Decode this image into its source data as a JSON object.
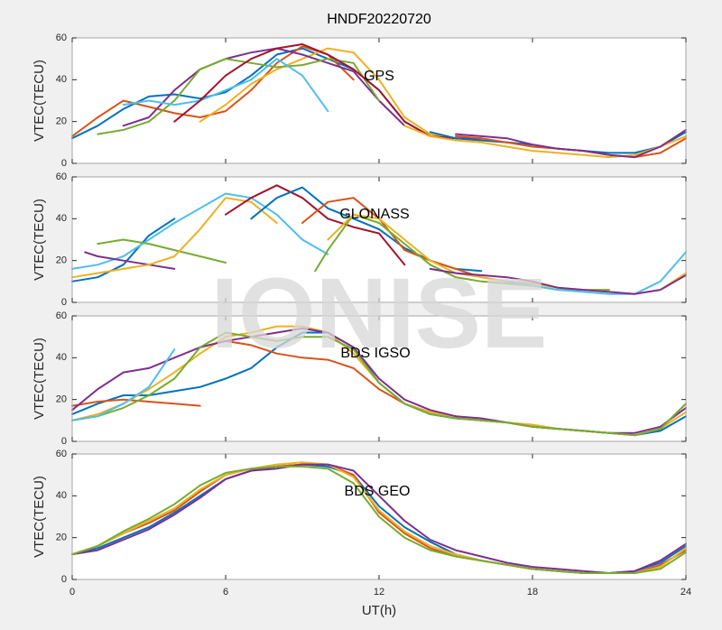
{
  "chart_data": [
    {
      "type": "line",
      "title": "HNDF20220720",
      "annotation": "GPS",
      "ylabel": "VTEC(TECU)",
      "xlim": [
        0,
        24
      ],
      "xticks": [
        0,
        6,
        12,
        18,
        24
      ],
      "ylim": [
        0,
        60
      ],
      "yticks": [
        0,
        20,
        40,
        60
      ],
      "series": [
        {
          "color": "#0072BD",
          "x": [
            0,
            1,
            2,
            3,
            4,
            5,
            6,
            7,
            8,
            9,
            10,
            11,
            12,
            13,
            14
          ],
          "values": [
            12,
            18,
            26,
            32,
            33,
            31,
            34,
            42,
            52,
            55,
            50,
            45,
            35,
            20,
            13
          ]
        },
        {
          "color": "#D95319",
          "x": [
            0,
            1,
            2,
            3,
            4,
            5,
            6,
            7,
            8,
            9,
            10,
            11
          ],
          "values": [
            13,
            22,
            30,
            27,
            24,
            22,
            25,
            35,
            48,
            56,
            52,
            40
          ]
        },
        {
          "color": "#EDB120",
          "x": [
            5,
            6,
            7,
            8,
            9,
            10,
            11,
            12,
            13,
            14,
            15,
            16,
            17,
            18
          ],
          "values": [
            20,
            28,
            38,
            45,
            50,
            55,
            53,
            40,
            22,
            14,
            12,
            11,
            10,
            9
          ]
        },
        {
          "color": "#7E2F8E",
          "x": [
            2,
            3,
            4,
            5,
            6,
            7,
            8,
            9,
            10,
            11,
            12,
            13
          ],
          "values": [
            18,
            22,
            35,
            45,
            50,
            53,
            55,
            52,
            48,
            44,
            30,
            18
          ]
        },
        {
          "color": "#77AC30",
          "x": [
            1,
            2,
            3,
            4,
            5,
            6,
            7,
            8,
            9,
            10,
            11,
            12
          ],
          "values": [
            14,
            16,
            20,
            30,
            45,
            50,
            48,
            46,
            47,
            50,
            48,
            30
          ]
        },
        {
          "color": "#4DBEEE",
          "x": [
            2,
            3,
            4,
            5,
            6,
            7,
            8,
            9,
            10
          ],
          "values": [
            28,
            30,
            28,
            30,
            35,
            40,
            50,
            42,
            25
          ]
        },
        {
          "color": "#A2142F",
          "x": [
            4,
            5,
            6,
            7,
            8,
            9,
            10,
            11,
            12,
            13,
            14,
            15,
            16
          ],
          "values": [
            20,
            30,
            42,
            50,
            55,
            57,
            52,
            45,
            35,
            20,
            13,
            12,
            12
          ]
        },
        {
          "color": "#0072BD",
          "x": [
            14,
            15,
            16,
            17,
            18,
            19,
            20,
            21,
            22,
            23,
            24
          ],
          "values": [
            15,
            12,
            11,
            10,
            9,
            7,
            6,
            5,
            5,
            8,
            15
          ]
        },
        {
          "color": "#D95319",
          "x": [
            15,
            16,
            17,
            18,
            19,
            20,
            21,
            22,
            23,
            24
          ],
          "values": [
            13,
            12,
            10,
            8,
            7,
            6,
            4,
            3,
            5,
            12
          ]
        },
        {
          "color": "#EDB120",
          "x": [
            13,
            14,
            15,
            16,
            17,
            18,
            19,
            20,
            21,
            22,
            23,
            24
          ],
          "values": [
            18,
            13,
            11,
            10,
            8,
            6,
            5,
            4,
            3,
            4,
            8,
            13
          ]
        },
        {
          "color": "#7E2F8E",
          "x": [
            15,
            16,
            17,
            18,
            19,
            20,
            21,
            22,
            23,
            24
          ],
          "values": [
            14,
            13,
            12,
            9,
            7,
            6,
            4,
            3,
            8,
            16
          ]
        }
      ]
    },
    {
      "type": "line",
      "annotation": "GLONASS",
      "ylabel": "VTEC(TECU)",
      "xlim": [
        0,
        24
      ],
      "xticks": [
        0,
        6,
        12,
        18,
        24
      ],
      "ylim": [
        0,
        60
      ],
      "yticks": [
        0,
        20,
        40,
        60
      ],
      "series": [
        {
          "color": "#0072BD",
          "x": [
            0,
            1,
            2,
            3,
            4
          ],
          "values": [
            10,
            12,
            18,
            32,
            40
          ]
        },
        {
          "color": "#4DBEEE",
          "x": [
            0,
            1,
            2,
            3,
            4,
            5,
            6,
            7,
            8,
            9,
            10
          ],
          "values": [
            16,
            18,
            22,
            30,
            38,
            45,
            52,
            50,
            42,
            30,
            23
          ]
        },
        {
          "color": "#77AC30",
          "x": [
            1,
            2,
            3,
            4,
            5,
            6
          ],
          "values": [
            28,
            30,
            28,
            25,
            22,
            19
          ]
        },
        {
          "color": "#7E2F8E",
          "x": [
            0.5,
            1,
            2,
            3,
            4
          ],
          "values": [
            24,
            22,
            20,
            18,
            16
          ]
        },
        {
          "color": "#EDB120",
          "x": [
            0,
            1,
            2,
            3,
            4,
            5,
            6,
            7,
            8
          ],
          "values": [
            12,
            14,
            16,
            18,
            22,
            35,
            50,
            48,
            38
          ]
        },
        {
          "color": "#A2142F",
          "x": [
            6,
            7,
            8,
            9,
            10,
            11,
            12,
            13
          ],
          "values": [
            42,
            50,
            56,
            50,
            40,
            36,
            33,
            18
          ]
        },
        {
          "color": "#0072BD",
          "x": [
            7,
            8,
            9,
            10,
            11,
            12,
            13,
            14,
            15,
            16
          ],
          "values": [
            40,
            50,
            55,
            45,
            40,
            35,
            26,
            20,
            16,
            15
          ]
        },
        {
          "color": "#D95319",
          "x": [
            9,
            10,
            11,
            12,
            13,
            14,
            15,
            16,
            17,
            18
          ],
          "values": [
            38,
            48,
            50,
            40,
            25,
            20,
            16,
            12,
            10,
            9
          ]
        },
        {
          "color": "#77AC30",
          "x": [
            9.5,
            10,
            11,
            12,
            13,
            14,
            15,
            16,
            17,
            18,
            19,
            20,
            21
          ],
          "values": [
            15,
            25,
            42,
            38,
            28,
            18,
            12,
            10,
            9,
            8,
            6,
            6,
            6
          ]
        },
        {
          "color": "#EDB120",
          "x": [
            10,
            11,
            12,
            13,
            14,
            15,
            16,
            17,
            18,
            19,
            20,
            21,
            22,
            23,
            24
          ],
          "values": [
            30,
            42,
            40,
            30,
            20,
            14,
            12,
            10,
            9,
            7,
            6,
            5,
            4,
            6,
            14
          ]
        },
        {
          "color": "#4DBEEE",
          "x": [
            17,
            18,
            19,
            20,
            21,
            22,
            23,
            24
          ],
          "values": [
            10,
            8,
            6,
            5,
            4,
            4,
            10,
            24
          ]
        },
        {
          "color": "#7E2F8E",
          "x": [
            14,
            15,
            16,
            17,
            18,
            19,
            20,
            21,
            22,
            23,
            24
          ],
          "values": [
            16,
            14,
            13,
            12,
            10,
            7,
            6,
            5,
            4,
            6,
            13
          ]
        }
      ]
    },
    {
      "type": "line",
      "annotation": "BDS IGSO",
      "ylabel": "VTEC(TECU)",
      "watermark": "IONISE",
      "xlim": [
        0,
        24
      ],
      "xticks": [
        0,
        6,
        12,
        18,
        24
      ],
      "ylim": [
        0,
        60
      ],
      "yticks": [
        0,
        20,
        40,
        60
      ],
      "series": [
        {
          "color": "#0072BD",
          "x": [
            0,
            1,
            2,
            3,
            4,
            5,
            6,
            7,
            8,
            9,
            10,
            11,
            12,
            13,
            14,
            15,
            16,
            17,
            18,
            19,
            20,
            21,
            22,
            23,
            24
          ],
          "values": [
            13,
            18,
            22,
            22,
            24,
            26,
            30,
            35,
            45,
            52,
            52,
            45,
            28,
            18,
            13,
            11,
            10,
            9,
            7,
            6,
            5,
            4,
            3,
            5,
            12
          ]
        },
        {
          "color": "#D95319",
          "x": [
            0,
            1,
            2,
            3,
            4,
            5
          ],
          "values": [
            17,
            19,
            20,
            19,
            18,
            17
          ]
        },
        {
          "color": "#D95319",
          "x": [
            5,
            6,
            7,
            8,
            9,
            10,
            11,
            12,
            13,
            14,
            15,
            16,
            17,
            18,
            19,
            20,
            21,
            22,
            23,
            24
          ],
          "values": [
            45,
            48,
            46,
            42,
            40,
            39,
            35,
            25,
            18,
            14,
            12,
            10,
            9,
            7,
            6,
            5,
            4,
            3,
            6,
            18
          ]
        },
        {
          "color": "#EDB120",
          "x": [
            0,
            1,
            2,
            3,
            4,
            5,
            6,
            7,
            8,
            9,
            10,
            11,
            12,
            13,
            14,
            15,
            16,
            17,
            18,
            19,
            20,
            21,
            22,
            23,
            24
          ],
          "values": [
            10,
            13,
            18,
            25,
            33,
            42,
            50,
            52,
            55,
            55,
            52,
            42,
            28,
            18,
            14,
            12,
            10,
            9,
            8,
            6,
            5,
            4,
            3,
            6,
            14
          ]
        },
        {
          "color": "#7E2F8E",
          "x": [
            0,
            1,
            2,
            3,
            4,
            5,
            6,
            7,
            8,
            9,
            10,
            11,
            12,
            13,
            14,
            15,
            16,
            17,
            18,
            19,
            20,
            21,
            22,
            23,
            24
          ],
          "values": [
            15,
            25,
            33,
            35,
            40,
            45,
            48,
            50,
            52,
            54,
            52,
            45,
            30,
            20,
            15,
            12,
            11,
            9,
            7,
            6,
            5,
            4,
            4,
            7,
            16
          ]
        },
        {
          "color": "#77AC30",
          "x": [
            0,
            1,
            2,
            3,
            4,
            5,
            6,
            7,
            8,
            9,
            10,
            11,
            12,
            13,
            14,
            15,
            16,
            17,
            18,
            19,
            20,
            21,
            22,
            23,
            24
          ],
          "values": [
            10,
            12,
            16,
            22,
            30,
            45,
            52,
            50,
            48,
            50,
            50,
            44,
            28,
            18,
            13,
            11,
            10,
            9,
            7,
            6,
            5,
            4,
            3,
            6,
            18
          ]
        },
        {
          "color": "#4DBEEE",
          "x": [
            0,
            1,
            2,
            3,
            4
          ],
          "values": [
            10,
            12,
            18,
            26,
            44
          ]
        }
      ]
    },
    {
      "type": "line",
      "annotation": "BDS GEO",
      "ylabel": "VTEC(TECU)",
      "xlabel": "UT(h)",
      "xlim": [
        0,
        24
      ],
      "xticks": [
        0,
        6,
        12,
        18,
        24
      ],
      "ylim": [
        0,
        60
      ],
      "yticks": [
        0,
        20,
        40,
        60
      ],
      "x": [
        0,
        1,
        2,
        3,
        4,
        5,
        6,
        7,
        8,
        9,
        10,
        11,
        12,
        13,
        14,
        15,
        16,
        17,
        18,
        19,
        20,
        21,
        22,
        23,
        24
      ],
      "series": [
        {
          "color": "#0072BD",
          "values": [
            12,
            15,
            20,
            25,
            32,
            40,
            48,
            52,
            54,
            55,
            54,
            50,
            35,
            25,
            18,
            12,
            9,
            7,
            5,
            4,
            3,
            3,
            4,
            8,
            16
          ]
        },
        {
          "color": "#D95319",
          "values": [
            12,
            16,
            22,
            27,
            33,
            42,
            50,
            53,
            54,
            55,
            55,
            50,
            32,
            22,
            15,
            11,
            9,
            7,
            5,
            4,
            3,
            3,
            3,
            7,
            14
          ]
        },
        {
          "color": "#EDB120",
          "values": [
            12,
            16,
            22,
            28,
            34,
            43,
            50,
            53,
            55,
            56,
            55,
            49,
            33,
            23,
            16,
            12,
            9,
            7,
            5,
            4,
            3,
            3,
            3,
            6,
            15
          ]
        },
        {
          "color": "#7E2F8E",
          "values": [
            12,
            14,
            19,
            24,
            31,
            39,
            48,
            52,
            53,
            55,
            55,
            52,
            40,
            28,
            19,
            14,
            11,
            8,
            6,
            5,
            4,
            3,
            4,
            9,
            17
          ]
        },
        {
          "color": "#77AC30",
          "values": [
            12,
            16,
            23,
            29,
            36,
            45,
            51,
            53,
            54,
            54,
            53,
            46,
            30,
            20,
            14,
            11,
            9,
            7,
            5,
            4,
            3,
            3,
            3,
            5,
            13
          ]
        }
      ]
    }
  ]
}
